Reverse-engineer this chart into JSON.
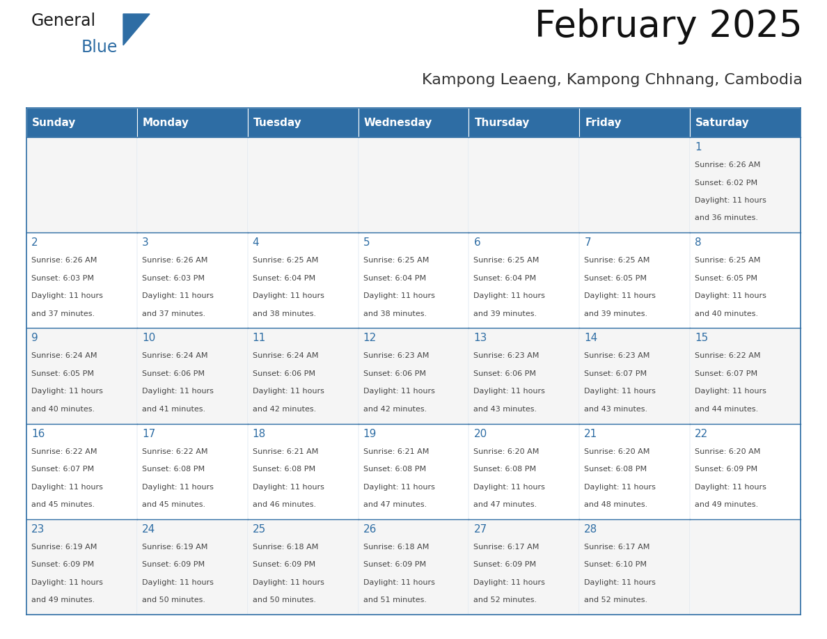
{
  "title": "February 2025",
  "subtitle": "Kampong Leaeng, Kampong Chhnang, Cambodia",
  "days_of_week": [
    "Sunday",
    "Monday",
    "Tuesday",
    "Wednesday",
    "Thursday",
    "Friday",
    "Saturday"
  ],
  "header_bg_color": "#2e6da4",
  "header_text_color": "#ffffff",
  "cell_bg_color_odd": "#f5f5f5",
  "cell_bg_color_even": "#ffffff",
  "border_color": "#2e6da4",
  "day_number_color": "#2e6da4",
  "text_color": "#444444",
  "title_color": "#111111",
  "subtitle_color": "#333333",
  "logo_general_color": "#1a1a1a",
  "logo_blue_color": "#2e6da4",
  "calendar_data": [
    [
      {
        "day": null,
        "info": ""
      },
      {
        "day": null,
        "info": ""
      },
      {
        "day": null,
        "info": ""
      },
      {
        "day": null,
        "info": ""
      },
      {
        "day": null,
        "info": ""
      },
      {
        "day": null,
        "info": ""
      },
      {
        "day": 1,
        "info": "Sunrise: 6:26 AM\nSunset: 6:02 PM\nDaylight: 11 hours\nand 36 minutes."
      }
    ],
    [
      {
        "day": 2,
        "info": "Sunrise: 6:26 AM\nSunset: 6:03 PM\nDaylight: 11 hours\nand 37 minutes."
      },
      {
        "day": 3,
        "info": "Sunrise: 6:26 AM\nSunset: 6:03 PM\nDaylight: 11 hours\nand 37 minutes."
      },
      {
        "day": 4,
        "info": "Sunrise: 6:25 AM\nSunset: 6:04 PM\nDaylight: 11 hours\nand 38 minutes."
      },
      {
        "day": 5,
        "info": "Sunrise: 6:25 AM\nSunset: 6:04 PM\nDaylight: 11 hours\nand 38 minutes."
      },
      {
        "day": 6,
        "info": "Sunrise: 6:25 AM\nSunset: 6:04 PM\nDaylight: 11 hours\nand 39 minutes."
      },
      {
        "day": 7,
        "info": "Sunrise: 6:25 AM\nSunset: 6:05 PM\nDaylight: 11 hours\nand 39 minutes."
      },
      {
        "day": 8,
        "info": "Sunrise: 6:25 AM\nSunset: 6:05 PM\nDaylight: 11 hours\nand 40 minutes."
      }
    ],
    [
      {
        "day": 9,
        "info": "Sunrise: 6:24 AM\nSunset: 6:05 PM\nDaylight: 11 hours\nand 40 minutes."
      },
      {
        "day": 10,
        "info": "Sunrise: 6:24 AM\nSunset: 6:06 PM\nDaylight: 11 hours\nand 41 minutes."
      },
      {
        "day": 11,
        "info": "Sunrise: 6:24 AM\nSunset: 6:06 PM\nDaylight: 11 hours\nand 42 minutes."
      },
      {
        "day": 12,
        "info": "Sunrise: 6:23 AM\nSunset: 6:06 PM\nDaylight: 11 hours\nand 42 minutes."
      },
      {
        "day": 13,
        "info": "Sunrise: 6:23 AM\nSunset: 6:06 PM\nDaylight: 11 hours\nand 43 minutes."
      },
      {
        "day": 14,
        "info": "Sunrise: 6:23 AM\nSunset: 6:07 PM\nDaylight: 11 hours\nand 43 minutes."
      },
      {
        "day": 15,
        "info": "Sunrise: 6:22 AM\nSunset: 6:07 PM\nDaylight: 11 hours\nand 44 minutes."
      }
    ],
    [
      {
        "day": 16,
        "info": "Sunrise: 6:22 AM\nSunset: 6:07 PM\nDaylight: 11 hours\nand 45 minutes."
      },
      {
        "day": 17,
        "info": "Sunrise: 6:22 AM\nSunset: 6:08 PM\nDaylight: 11 hours\nand 45 minutes."
      },
      {
        "day": 18,
        "info": "Sunrise: 6:21 AM\nSunset: 6:08 PM\nDaylight: 11 hours\nand 46 minutes."
      },
      {
        "day": 19,
        "info": "Sunrise: 6:21 AM\nSunset: 6:08 PM\nDaylight: 11 hours\nand 47 minutes."
      },
      {
        "day": 20,
        "info": "Sunrise: 6:20 AM\nSunset: 6:08 PM\nDaylight: 11 hours\nand 47 minutes."
      },
      {
        "day": 21,
        "info": "Sunrise: 6:20 AM\nSunset: 6:08 PM\nDaylight: 11 hours\nand 48 minutes."
      },
      {
        "day": 22,
        "info": "Sunrise: 6:20 AM\nSunset: 6:09 PM\nDaylight: 11 hours\nand 49 minutes."
      }
    ],
    [
      {
        "day": 23,
        "info": "Sunrise: 6:19 AM\nSunset: 6:09 PM\nDaylight: 11 hours\nand 49 minutes."
      },
      {
        "day": 24,
        "info": "Sunrise: 6:19 AM\nSunset: 6:09 PM\nDaylight: 11 hours\nand 50 minutes."
      },
      {
        "day": 25,
        "info": "Sunrise: 6:18 AM\nSunset: 6:09 PM\nDaylight: 11 hours\nand 50 minutes."
      },
      {
        "day": 26,
        "info": "Sunrise: 6:18 AM\nSunset: 6:09 PM\nDaylight: 11 hours\nand 51 minutes."
      },
      {
        "day": 27,
        "info": "Sunrise: 6:17 AM\nSunset: 6:09 PM\nDaylight: 11 hours\nand 52 minutes."
      },
      {
        "day": 28,
        "info": "Sunrise: 6:17 AM\nSunset: 6:10 PM\nDaylight: 11 hours\nand 52 minutes."
      },
      {
        "day": null,
        "info": ""
      }
    ]
  ],
  "num_rows": 5,
  "num_cols": 7
}
